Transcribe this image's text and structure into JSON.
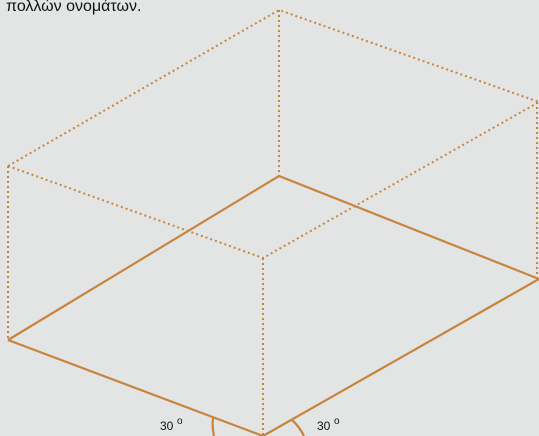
{
  "caption": "πολλών ονομάτων.",
  "angle_labels": [
    {
      "value": "30",
      "unit": "o"
    },
    {
      "value": "30",
      "unit": "o"
    }
  ]
}
